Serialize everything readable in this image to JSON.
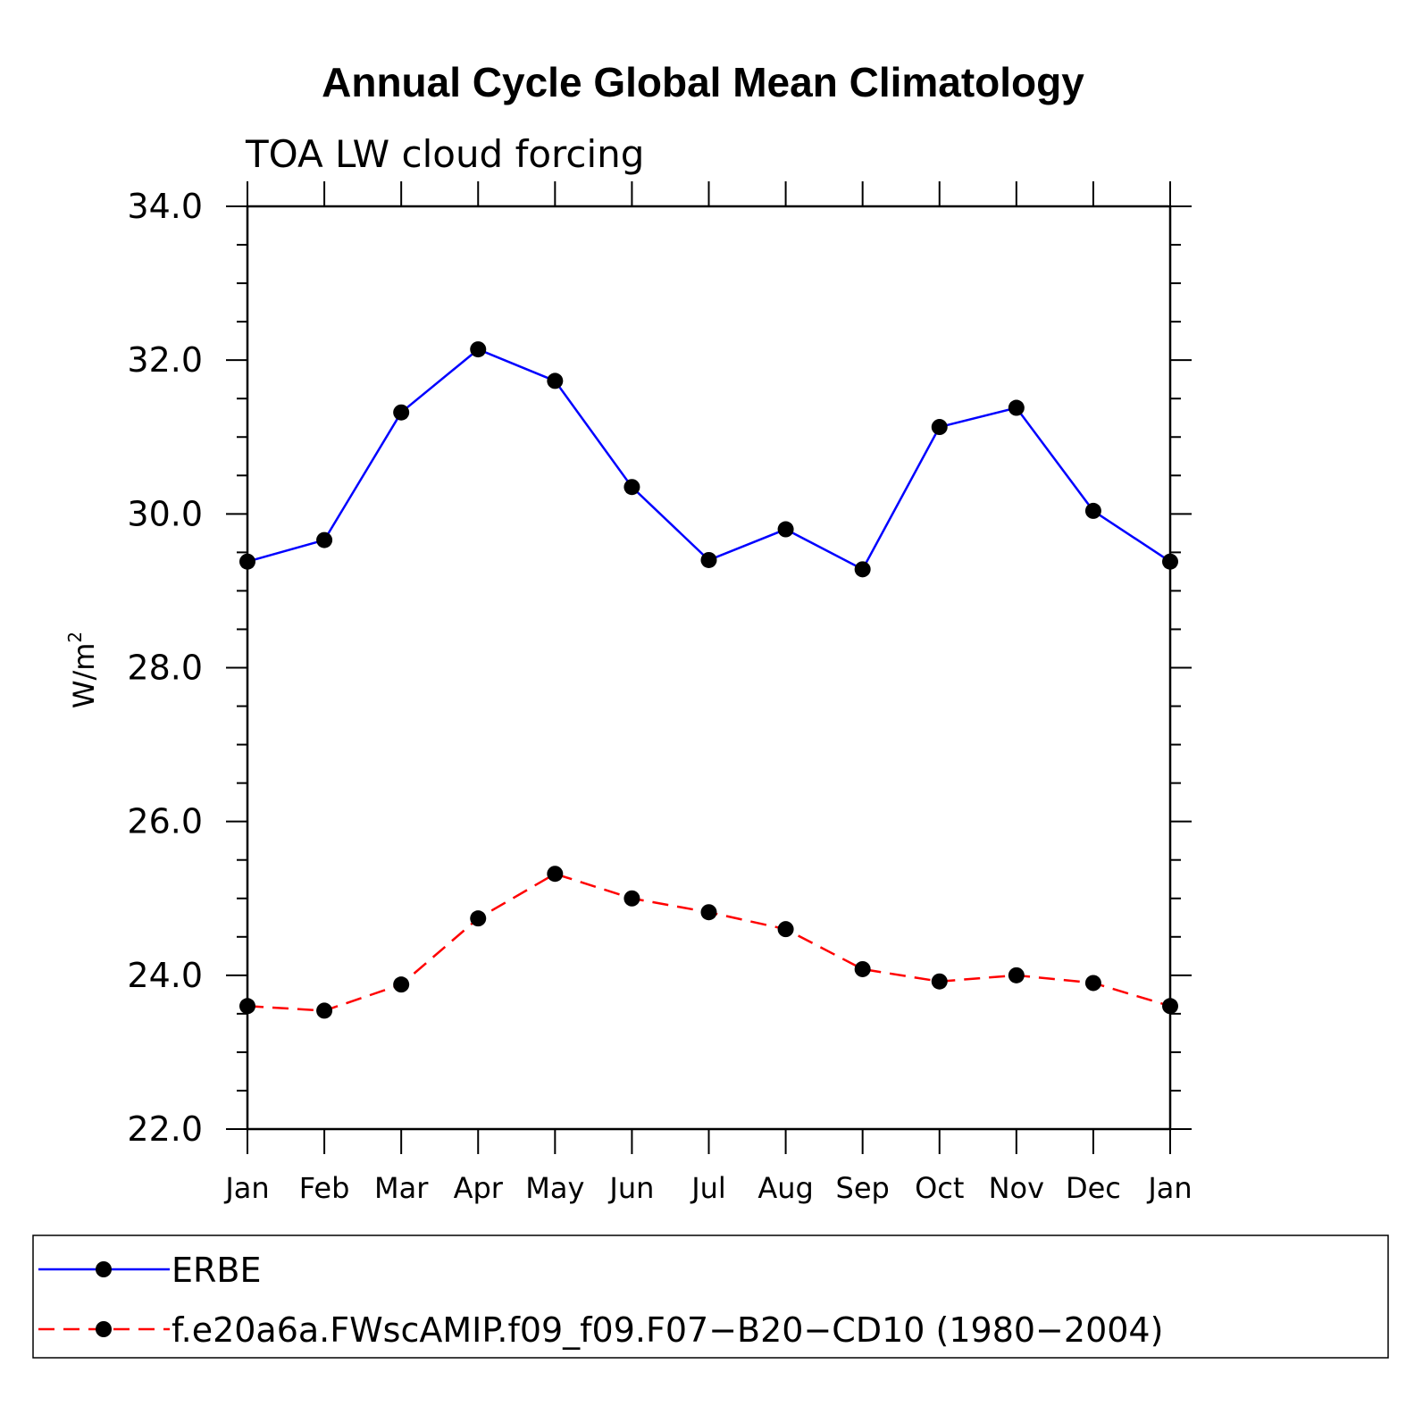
{
  "chart_data": {
    "type": "line",
    "title": "Annual Cycle Global Mean Climatology",
    "subtitle": "TOA LW cloud forcing",
    "ylabel": "W/m",
    "ylabel_superscript": "2",
    "ylim": [
      22.0,
      34.0
    ],
    "yticks": [
      "22.0",
      "24.0",
      "26.0",
      "28.0",
      "30.0",
      "32.0",
      "34.0"
    ],
    "categories": [
      "Jan",
      "Feb",
      "Mar",
      "Apr",
      "May",
      "Jun",
      "Jul",
      "Aug",
      "Sep",
      "Oct",
      "Nov",
      "Dec",
      "Jan"
    ],
    "series": [
      {
        "name": "ERBE",
        "color": "#0000ff",
        "dash": "solid",
        "values": [
          29.38,
          29.66,
          31.32,
          32.14,
          31.73,
          30.35,
          29.4,
          29.8,
          29.28,
          31.13,
          31.38,
          30.04,
          29.38
        ]
      },
      {
        "name": "f.e20a6a.FWscAMIP.f09_f09.F07−B20−CD10 (1980−2004)",
        "color": "#ff0000",
        "dash": "dashed",
        "values": [
          23.6,
          23.54,
          23.88,
          24.74,
          25.32,
          25.0,
          24.82,
          24.6,
          24.08,
          23.92,
          24.0,
          23.9,
          23.6
        ]
      }
    ],
    "legend_position": "bottom",
    "marker_color": "#000000"
  }
}
